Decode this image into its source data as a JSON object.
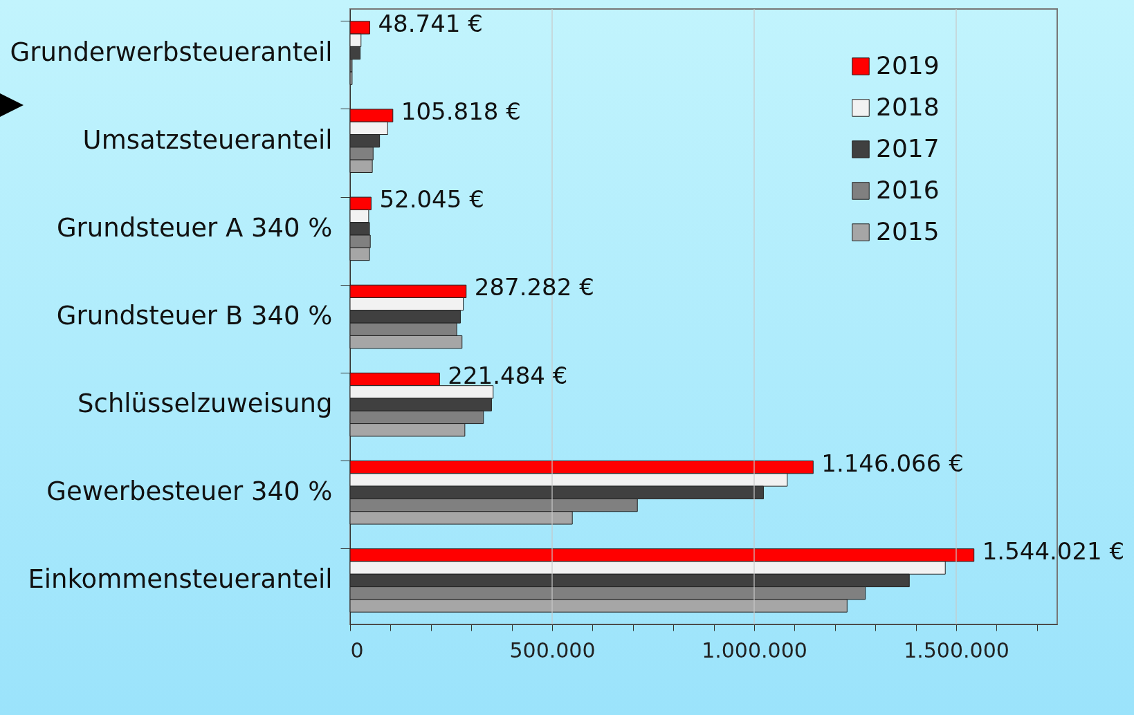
{
  "chart_data": {
    "type": "bar",
    "orientation": "horizontal",
    "categories": [
      "Grunderwerbsteueranteil",
      "Umsatzsteueranteil",
      "Grundsteuer A 340 %",
      "Grundsteuer B 340 %",
      "Schlüsselzuweisung",
      "Gewerbesteuer 340 %",
      "Einkommensteueranteil"
    ],
    "series": [
      {
        "name": "2019",
        "color": "#ff0000",
        "values": [
          48741,
          105818,
          52045,
          287282,
          221484,
          1146066,
          1544021
        ],
        "value_labels": [
          "48.741 €",
          "105.818 €",
          "52.045 €",
          "287.282 €",
          "221.484 €",
          "1.146.066 €",
          "1.544.021 €"
        ]
      },
      {
        "name": "2018",
        "color": "#f2f2f2",
        "values": [
          27000,
          93000,
          46000,
          280000,
          354000,
          1082000,
          1473000
        ]
      },
      {
        "name": "2017",
        "color": "#404040",
        "values": [
          25000,
          73000,
          48000,
          273000,
          350000,
          1023000,
          1384000
        ]
      },
      {
        "name": "2016",
        "color": "#808080",
        "values": [
          5000,
          57000,
          50000,
          264000,
          330000,
          711000,
          1275000
        ]
      },
      {
        "name": "2015",
        "color": "#a6a6a6",
        "values": [
          5000,
          55000,
          48000,
          277000,
          284000,
          550000,
          1230000
        ]
      }
    ],
    "xlim": [
      0,
      1750000
    ],
    "xticks": [
      0,
      {
        "value": 100000,
        "label": null
      },
      {
        "value": 200000,
        "label": null
      },
      {
        "value": 300000,
        "label": null
      },
      {
        "value": 400000,
        "label": null
      },
      {
        "value": 500000,
        "label": "500.000"
      },
      {
        "value": 600000,
        "label": null
      },
      {
        "value": 700000,
        "label": null
      },
      {
        "value": 800000,
        "label": null
      },
      {
        "value": 900000,
        "label": null
      },
      {
        "value": 1000000,
        "label": "1.000.000"
      },
      {
        "value": 1100000,
        "label": null
      },
      {
        "value": 1200000,
        "label": null
      },
      {
        "value": 1300000,
        "label": null
      },
      {
        "value": 1400000,
        "label": null
      },
      {
        "value": 1500000,
        "label": "1.500.000"
      },
      {
        "value": 1600000,
        "label": null
      },
      {
        "value": 1700000,
        "label": null
      }
    ],
    "grid": "x",
    "legend": "top right"
  }
}
